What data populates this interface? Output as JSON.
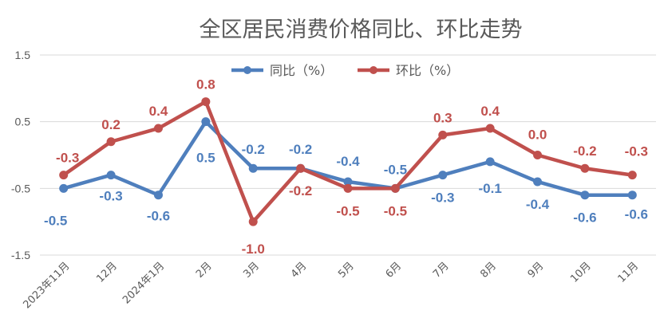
{
  "chart_data": {
    "type": "line",
    "title": "全区居民消费价格同比、环比走势",
    "categories": [
      "2023年11月",
      "12月",
      "2024年1月",
      "2月",
      "3月",
      "4月",
      "5月",
      "6月",
      "7月",
      "8月",
      "9月",
      "10月",
      "11月"
    ],
    "series": [
      {
        "name": "同比（%）",
        "color": "#4F7FBD",
        "values": [
          -0.5,
          -0.3,
          -0.6,
          0.5,
          -0.2,
          -0.2,
          -0.4,
          -0.5,
          -0.3,
          -0.1,
          -0.4,
          -0.6,
          -0.6
        ],
        "labels": [
          "-0.5",
          "-0.3",
          "-0.6",
          "0.5",
          "-0.2",
          "-0.2",
          "-0.4",
          "-0.5",
          "-0.3",
          "-0.1",
          "-0.4",
          "-0.6",
          "-0.6"
        ]
      },
      {
        "name": "环比（%）",
        "color": "#C0504D",
        "values": [
          -0.3,
          0.2,
          0.4,
          0.8,
          -1.0,
          -0.2,
          -0.5,
          -0.5,
          0.3,
          0.4,
          0.0,
          -0.2,
          -0.3
        ],
        "labels": [
          "-0.3",
          "0.2",
          "0.4",
          "0.8",
          "-1.0",
          "-0.2",
          "-0.5",
          "-0.5",
          "0.3",
          "0.4",
          "0.0",
          "-0.2",
          "-0.3"
        ]
      }
    ],
    "ylim": [
      -1.5,
      1.5
    ],
    "yticks": [
      "1.5",
      "0.5",
      "-0.5",
      "-1.5"
    ],
    "ytick_values": [
      1.5,
      0.5,
      -0.5,
      -1.5
    ],
    "grid": true,
    "legend_position": "top"
  }
}
